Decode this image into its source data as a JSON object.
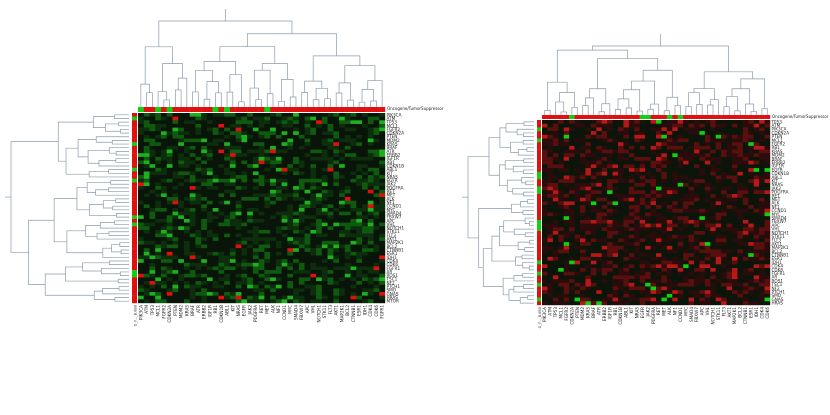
{
  "colors": {
    "dendrogram": "#8a9aaa",
    "up": "#e01010",
    "down": "#10d010",
    "background": "#ffffff"
  },
  "panels": [
    {
      "id": "left",
      "sidebar_label": "Oncogene/TumorSuppressor",
      "corner_label": "O_F..._B.0B0",
      "row_labels": [
        "PIK3CA",
        "ATM",
        "TP53",
        "MCL1",
        "FGFR2",
        "CDKN2A",
        "PTEN",
        "MDM2",
        "KRAS",
        "BRAF",
        "ATR",
        "ERBB2",
        "IGF1R",
        "RB1",
        "CDKN1B",
        "ABL1",
        "KIT",
        "NRAS",
        "EGFR",
        "JAK2",
        "PDGFRA",
        "RET",
        "MET",
        "ALK",
        "NF1",
        "CCND1",
        "MYC",
        "SMAD4",
        "FBXW7",
        "APC",
        "VHL",
        "NOTCH1",
        "STK11",
        "FLT3",
        "AKT1",
        "MAP2K1",
        "BCL2",
        "CTNNB1",
        "ESR1",
        "IDH1",
        "CDK4",
        "CDK6",
        "FGFR1",
        "AR",
        "ROS1",
        "TSC1",
        "NF2",
        "PTCH1",
        "SMO",
        "GNAS",
        "HRAS",
        "MTOR"
      ],
      "col_labels": [
        "PIK3CA",
        "ATM",
        "TP53",
        "MCL1",
        "FGFR2",
        "CDKN2A",
        "PTEN",
        "MDM2",
        "KRAS",
        "BRAF",
        "ATR",
        "ERBB2",
        "IGF1R",
        "RB1",
        "CDKN1B",
        "ABL1",
        "KIT",
        "NRAS",
        "EGFR",
        "JAK2",
        "PDGFRA",
        "RET",
        "MET",
        "ALK",
        "NF1",
        "CCND1",
        "MYC",
        "SMAD4",
        "FBXW7",
        "APC",
        "VHL",
        "NOTCH1",
        "STK11",
        "FLT3",
        "AKT1",
        "MAP2K1",
        "BCL2",
        "CTNNB1",
        "ESR1",
        "IDH1",
        "CDK4",
        "CDK6",
        "FGFR1"
      ]
    },
    {
      "id": "right",
      "sidebar_label": "Oncogene/TumorSuppressor",
      "corner_label": "O_F..._B.0B0",
      "row_labels": [
        "TP53",
        "ATM",
        "PIK3CA",
        "CDKN2A",
        "PTEN",
        "MCL1",
        "FGFR2",
        "RB1",
        "KRAS",
        "MDM2",
        "BRAF",
        "ERBB2",
        "IGF1R",
        "EGFR",
        "CDKN1B",
        "ABL1",
        "KIT",
        "NRAS",
        "JAK2",
        "PDGFRA",
        "RET",
        "MET",
        "ALK",
        "NF1",
        "CCND1",
        "MYC",
        "SMAD4",
        "FBXW7",
        "APC",
        "VHL",
        "NOTCH1",
        "STK11",
        "FLT3",
        "AKT1",
        "MAP2K1",
        "BCL2",
        "CTNNB1",
        "ESR1",
        "IDH1",
        "CDK4",
        "CDK6",
        "FGFR1",
        "AR",
        "ROS1",
        "TSC1",
        "NF2",
        "PTCH1",
        "SMO",
        "GNAS",
        "HRAS"
      ],
      "col_labels": [
        "PIK3CA",
        "ATM",
        "TP53",
        "MCL1",
        "FGFR2",
        "CDKN2A",
        "PTEN",
        "MDM2",
        "KRAS",
        "BRAF",
        "ATR",
        "ERBB2",
        "IGF1R",
        "RB1",
        "CDKN1B",
        "ABL1",
        "KIT",
        "NRAS",
        "EGFR",
        "JAK2",
        "PDGFRA",
        "RET",
        "MET",
        "ALK",
        "NF1",
        "CCND1",
        "MYC",
        "SMAD4",
        "FBXW7",
        "APC",
        "VHL",
        "NOTCH1",
        "STK11",
        "FLT3",
        "AKT1",
        "MAP2K1",
        "BCL2",
        "CTNNB1",
        "ESR1",
        "IDH1",
        "CDK4",
        "CDK6"
      ]
    }
  ]
}
